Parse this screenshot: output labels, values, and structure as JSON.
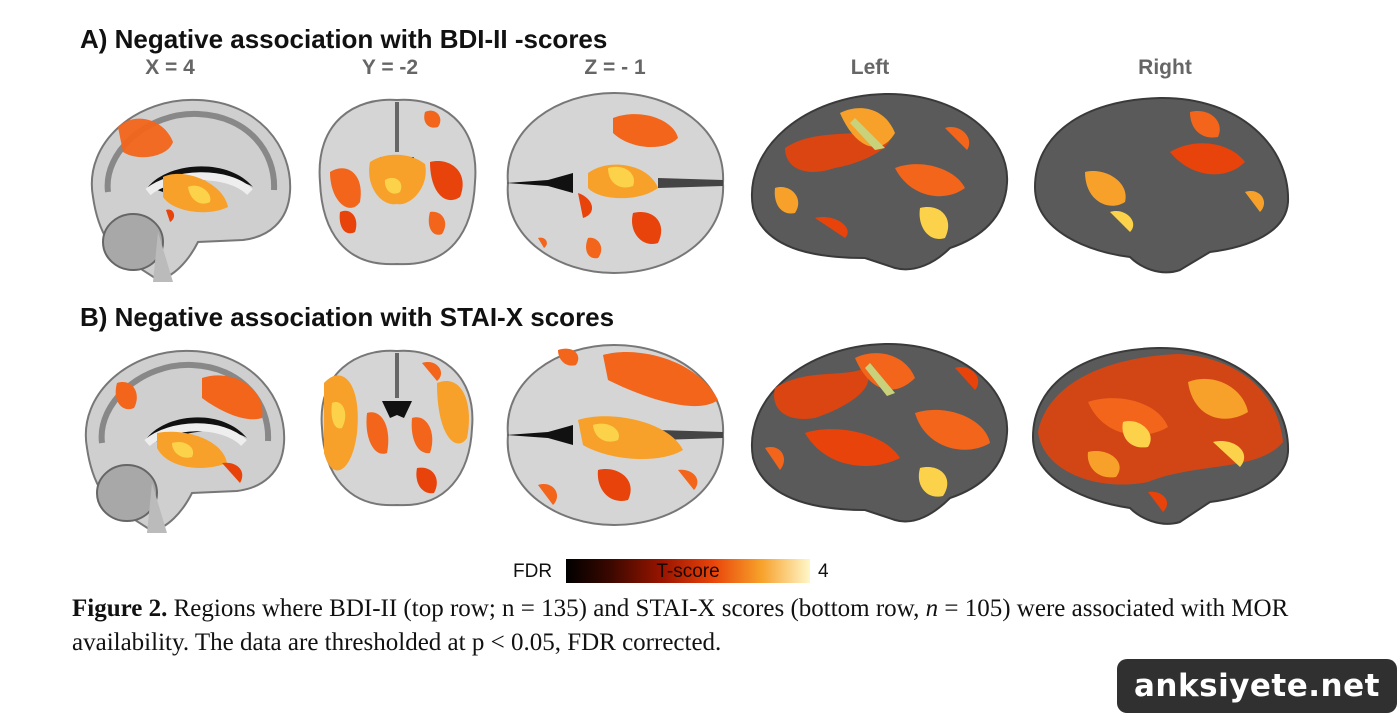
{
  "figure": {
    "row_a": {
      "title": "A) Negative association with BDI-II -scores",
      "labels": {
        "sagittal": "X = 4",
        "coronal": "Y = -2",
        "axial": "Z = - 1",
        "left": "Left",
        "right": "Right"
      }
    },
    "row_b": {
      "title": "B) Negative association with STAI-X scores"
    },
    "colorbar": {
      "left_label": "FDR",
      "center_label": "T-score",
      "right_label": "4"
    },
    "caption": {
      "label": "Figure 2.",
      "text_1": " Regions where BDI-II (top row; n = 135) and STAI-X scores (bottom row, ",
      "n_italic": "n",
      "text_2": " = 105) were associated with MOR availability. The data are thresholded at p < 0.05, FDR corrected."
    }
  },
  "watermark": "anksiyete.net",
  "colors": {
    "heat_low": "#d42a00",
    "heat_mid": "#f2651b",
    "heat_high": "#fbd24a",
    "brain_gray": "#bdbdbd",
    "surface_gray": "#5a5a5a"
  }
}
